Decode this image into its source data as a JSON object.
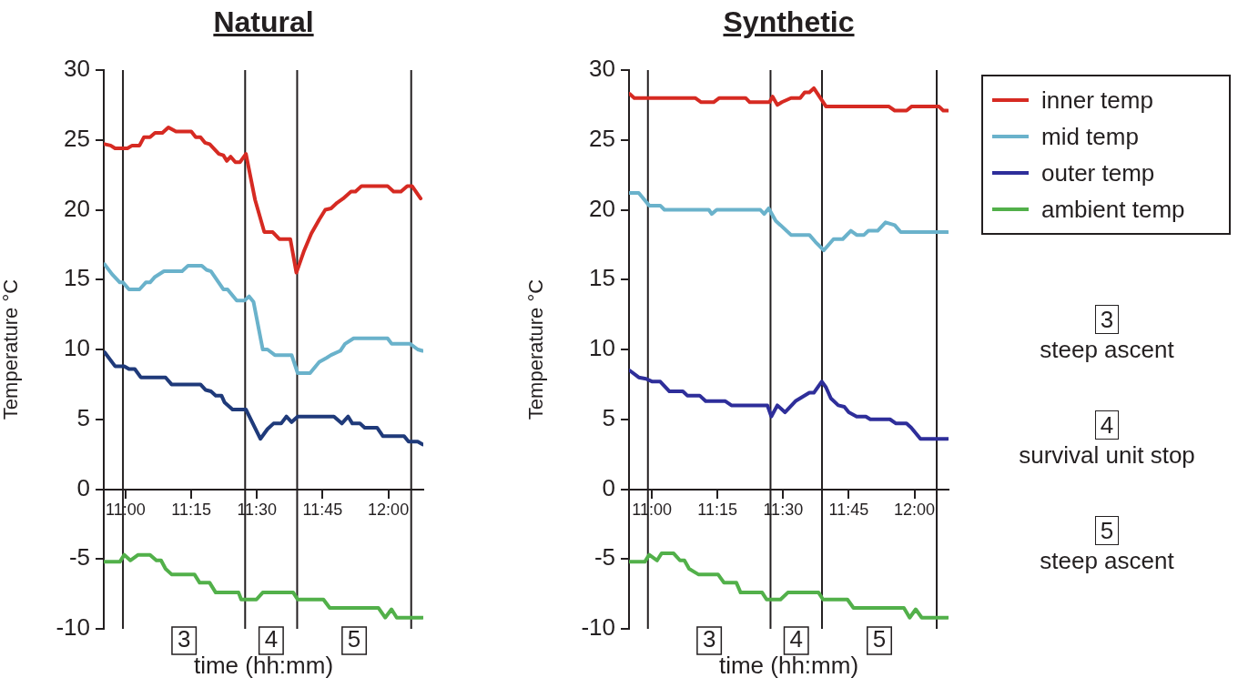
{
  "chart_data": [
    {
      "type": "line",
      "title": "Natural",
      "xlabel": "time (hh:mm)",
      "ylabel": "Temperature °C",
      "xlim": [
        10.917,
        12.133
      ],
      "ylim": [
        -10,
        30
      ],
      "yticks": [
        -10,
        -5,
        0,
        5,
        10,
        15,
        20,
        25,
        30
      ],
      "xticks": [
        {
          "value": 11,
          "label": "11:00"
        },
        {
          "value": 11.25,
          "label": "11:15"
        },
        {
          "value": 11.5,
          "label": "11:30"
        },
        {
          "value": 11.75,
          "label": "11:45"
        },
        {
          "value": 12,
          "label": "12:00"
        }
      ],
      "grid": false,
      "legend": false,
      "marker": "none",
      "line_style": "solid",
      "ref_lines": [
        {
          "axis": "x",
          "value": 10.99,
          "color": "#231f20"
        },
        {
          "axis": "x",
          "value": 11.455,
          "color": "#231f20"
        },
        {
          "axis": "x",
          "value": 11.653,
          "color": "#231f20"
        },
        {
          "axis": "x",
          "value": 12.087,
          "color": "#231f20"
        }
      ],
      "annotations": [
        "3",
        "4",
        "5"
      ],
      "series": [
        {
          "color": "#d62a22",
          "x": [
            10.92,
            10.943,
            10.96,
            11.007,
            11.025,
            11.053,
            11.07,
            11.093,
            11.112,
            11.14,
            11.163,
            11.192,
            11.25,
            11.267,
            11.285,
            11.302,
            11.32,
            11.355,
            11.372,
            11.385,
            11.4,
            11.418,
            11.435,
            11.458,
            11.493,
            11.528,
            11.56,
            11.585,
            11.627,
            11.65,
            11.678,
            11.707,
            11.737,
            11.76,
            11.782,
            11.805,
            11.828,
            11.858,
            11.875,
            11.898,
            11.997,
            12.02,
            12.048,
            12.072,
            12.09,
            12.123
          ],
          "values": [
            24.7,
            24.6,
            24.4,
            24.4,
            24.6,
            24.6,
            25.2,
            25.2,
            25.5,
            25.5,
            25.9,
            25.6,
            25.6,
            25.2,
            25.2,
            24.8,
            24.7,
            24.0,
            23.9,
            23.5,
            23.8,
            23.4,
            23.4,
            24.0,
            20.7,
            18.4,
            18.4,
            17.9,
            17.9,
            15.5,
            17.0,
            18.3,
            19.3,
            20.0,
            20.1,
            20.5,
            20.8,
            21.3,
            21.3,
            21.7,
            21.7,
            21.3,
            21.3,
            21.7,
            21.7,
            20.8
          ]
        },
        {
          "color": "#6ab2cb",
          "x": [
            10.92,
            10.948,
            10.978,
            10.99,
            11.013,
            11.053,
            11.077,
            11.093,
            11.112,
            11.146,
            11.215,
            11.238,
            11.29,
            11.308,
            11.325,
            11.372,
            11.388,
            11.423,
            11.452,
            11.47,
            11.487,
            11.522,
            11.54,
            11.568,
            11.632,
            11.655,
            11.702,
            11.737,
            11.765,
            11.782,
            11.817,
            11.835,
            11.868,
            11.997,
            12.013,
            12.083,
            12.112,
            12.13
          ],
          "values": [
            16.1,
            15.4,
            14.8,
            14.8,
            14.3,
            14.3,
            14.8,
            14.8,
            15.2,
            15.6,
            15.6,
            16.0,
            16.0,
            15.7,
            15.6,
            14.3,
            14.3,
            13.5,
            13.5,
            13.8,
            13.4,
            10.0,
            10.0,
            9.6,
            9.6,
            8.3,
            8.3,
            9.1,
            9.4,
            9.6,
            9.9,
            10.4,
            10.8,
            10.8,
            10.4,
            10.4,
            10.0,
            9.9
          ]
        },
        {
          "color": "#1f3a7a",
          "x": [
            10.92,
            10.96,
            10.995,
            11.013,
            11.035,
            11.058,
            11.152,
            11.175,
            11.285,
            11.305,
            11.325,
            11.343,
            11.365,
            11.377,
            11.407,
            11.458,
            11.513,
            11.54,
            11.563,
            11.592,
            11.612,
            11.632,
            11.655,
            11.793,
            11.823,
            11.847,
            11.863,
            11.892,
            11.91,
            11.957,
            11.979,
            12.06,
            12.077,
            12.112,
            12.13
          ],
          "values": [
            9.8,
            8.8,
            8.8,
            8.6,
            8.6,
            8.0,
            8.0,
            7.5,
            7.5,
            7.1,
            7.0,
            6.7,
            6.7,
            6.2,
            5.7,
            5.7,
            3.6,
            4.3,
            4.7,
            4.7,
            5.2,
            4.8,
            5.2,
            5.2,
            4.7,
            5.2,
            4.7,
            4.7,
            4.4,
            4.4,
            3.8,
            3.8,
            3.4,
            3.4,
            3.2
          ]
        },
        {
          "color": "#52b04a",
          "x": [
            10.92,
            10.978,
            10.995,
            11.018,
            11.048,
            11.093,
            11.117,
            11.135,
            11.152,
            11.175,
            11.262,
            11.282,
            11.32,
            11.343,
            11.43,
            11.44,
            11.498,
            11.522,
            11.638,
            11.655,
            11.753,
            11.777,
            11.962,
            11.988,
            12.012,
            12.032,
            12.13
          ],
          "values": [
            -5.2,
            -5.2,
            -4.7,
            -5.1,
            -4.7,
            -4.7,
            -5.1,
            -5.1,
            -5.7,
            -6.1,
            -6.1,
            -6.7,
            -6.7,
            -7.4,
            -7.4,
            -7.9,
            -7.9,
            -7.4,
            -7.4,
            -7.9,
            -7.9,
            -8.5,
            -8.5,
            -9.2,
            -8.6,
            -9.2,
            -9.2
          ]
        }
      ]
    },
    {
      "type": "line",
      "title": "Synthetic",
      "xlabel": "time (hh:mm)",
      "ylabel": "Temperature °C",
      "xlim": [
        10.913,
        12.13
      ],
      "ylim": [
        -10,
        30
      ],
      "yticks": [
        -10,
        -5,
        0,
        5,
        10,
        15,
        20,
        25,
        30
      ],
      "xticks": [
        {
          "value": 11,
          "label": "11:00"
        },
        {
          "value": 11.25,
          "label": "11:15"
        },
        {
          "value": 11.5,
          "label": "11:30"
        },
        {
          "value": 11.75,
          "label": "11:45"
        },
        {
          "value": 12,
          "label": "12:00"
        }
      ],
      "grid": false,
      "legend": "right",
      "marker": "none",
      "line_style": "solid",
      "ref_lines": [
        {
          "axis": "x",
          "value": 10.985,
          "color": "#231f20"
        },
        {
          "axis": "x",
          "value": 11.452,
          "color": "#231f20"
        },
        {
          "axis": "x",
          "value": 11.648,
          "color": "#231f20"
        },
        {
          "axis": "x",
          "value": 12.085,
          "color": "#231f20"
        }
      ],
      "annotations": [
        "3",
        "4",
        "5",
        "3",
        "steep ascent",
        "4",
        "survival unit stop",
        "5",
        "steep ascent"
      ],
      "series": [
        {
          "name": "inner temp",
          "color": "#d62a22",
          "x": [
            10.915,
            10.933,
            11.165,
            11.188,
            11.235,
            11.257,
            11.357,
            11.373,
            11.448,
            11.46,
            11.478,
            11.495,
            11.53,
            11.565,
            11.582,
            11.6,
            11.617,
            11.663,
            11.902,
            11.925,
            11.97,
            11.99,
            12.093,
            12.11,
            12.127
          ],
          "values": [
            28.3,
            28.0,
            28.0,
            27.7,
            27.7,
            28.0,
            28.0,
            27.7,
            27.7,
            28.1,
            27.5,
            27.7,
            28.0,
            28.0,
            28.4,
            28.4,
            28.7,
            27.4,
            27.4,
            27.1,
            27.1,
            27.4,
            27.4,
            27.1,
            27.1
          ]
        },
        {
          "name": "mid temp",
          "color": "#6ab2cb",
          "x": [
            10.915,
            10.95,
            10.99,
            11.032,
            11.048,
            11.217,
            11.228,
            11.247,
            11.413,
            11.428,
            11.445,
            11.472,
            11.49,
            11.53,
            11.6,
            11.623,
            11.655,
            11.692,
            11.727,
            11.758,
            11.78,
            11.808,
            11.825,
            11.86,
            11.89,
            11.925,
            11.948,
            12.127
          ],
          "values": [
            21.2,
            21.2,
            20.3,
            20.3,
            20.0,
            20.0,
            19.7,
            20.0,
            20.0,
            19.7,
            20.1,
            19.2,
            18.9,
            18.2,
            18.2,
            17.7,
            17.1,
            17.9,
            17.9,
            18.5,
            18.2,
            18.2,
            18.5,
            18.5,
            19.1,
            18.9,
            18.4,
            18.4
          ]
        },
        {
          "name": "outer temp",
          "color": "#2e2e9a",
          "x": [
            10.915,
            10.95,
            10.978,
            11.002,
            11.032,
            11.067,
            11.118,
            11.135,
            11.182,
            11.205,
            11.28,
            11.303,
            11.44,
            11.455,
            11.478,
            11.507,
            11.547,
            11.6,
            11.617,
            11.647,
            11.663,
            11.682,
            11.71,
            11.733,
            11.75,
            11.78,
            11.815,
            11.832,
            11.907,
            11.93,
            11.97,
            11.988,
            12.023,
            12.127
          ],
          "values": [
            8.5,
            8.0,
            7.9,
            7.7,
            7.7,
            7.0,
            7.0,
            6.7,
            6.7,
            6.3,
            6.3,
            6.0,
            6.0,
            5.2,
            6.0,
            5.5,
            6.3,
            6.9,
            6.9,
            7.7,
            7.3,
            6.5,
            6.0,
            5.9,
            5.5,
            5.2,
            5.2,
            5.0,
            5.0,
            4.7,
            4.7,
            4.4,
            3.6,
            3.6
          ]
        },
        {
          "name": "ambient temp",
          "color": "#52b04a",
          "x": [
            10.915,
            10.973,
            10.99,
            11.02,
            11.037,
            11.083,
            11.107,
            11.124,
            11.142,
            11.177,
            11.252,
            11.275,
            11.322,
            11.338,
            11.42,
            11.437,
            11.49,
            11.518,
            11.635,
            11.652,
            11.745,
            11.768,
            11.96,
            11.982,
            12.005,
            12.028,
            12.127
          ],
          "values": [
            -5.2,
            -5.2,
            -4.7,
            -5.1,
            -4.6,
            -4.6,
            -5.1,
            -5.1,
            -5.7,
            -6.1,
            -6.1,
            -6.7,
            -6.7,
            -7.4,
            -7.4,
            -7.9,
            -7.9,
            -7.4,
            -7.4,
            -7.9,
            -7.9,
            -8.5,
            -8.5,
            -9.2,
            -8.6,
            -9.2,
            -9.2
          ]
        }
      ]
    }
  ]
}
